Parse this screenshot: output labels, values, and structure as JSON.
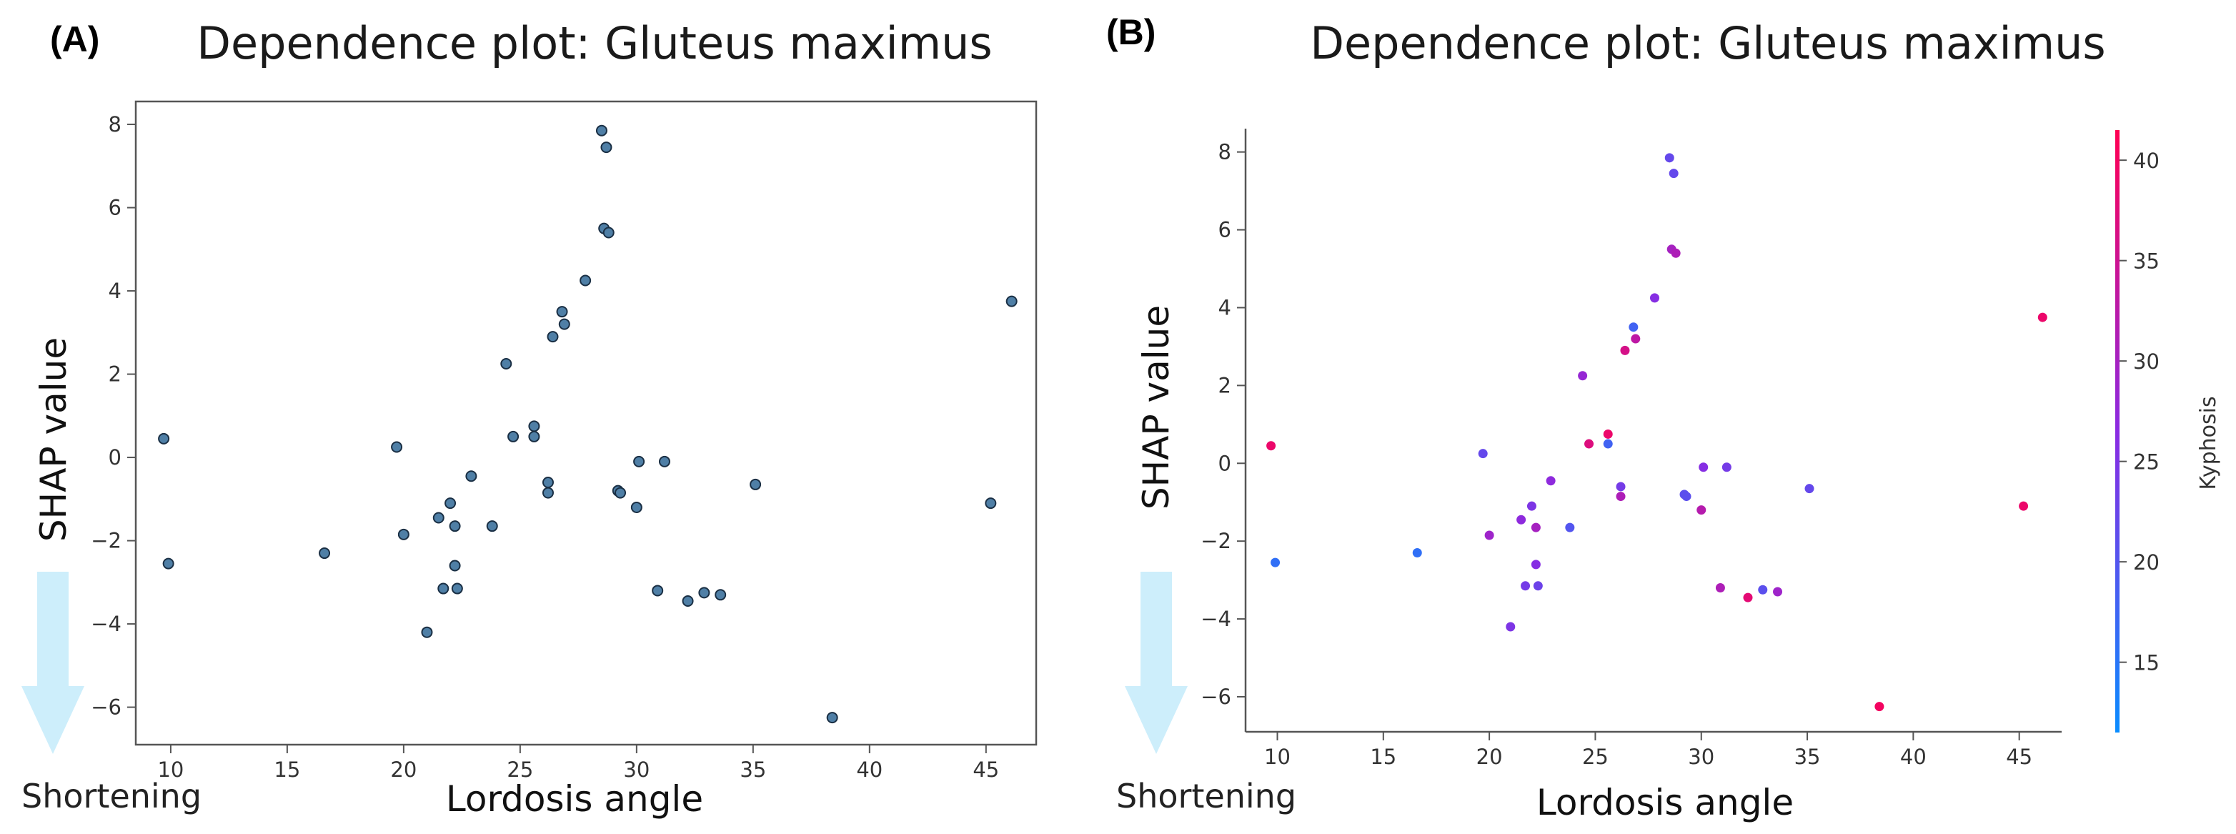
{
  "panels": {
    "a": {
      "letter": "(A)",
      "title": "Dependence plot: Gluteus maximus",
      "xlabel": "Lordosis angle",
      "ylabel": "SHAP value",
      "arrow_label": "Shortening"
    },
    "b": {
      "letter": "(B)",
      "title": "Dependence plot: Gluteus maximus",
      "xlabel": "Lordosis angle",
      "ylabel": "SHAP value",
      "arrow_label": "Shortening",
      "colorbar_label": "Kyphosis"
    }
  },
  "colors": {
    "single_point": "#4f7fa6",
    "point_edge": "#1a2f44",
    "arrow": "#cdeefb",
    "cmap_low": "#0a8cff",
    "cmap_mid": "#8a2be2",
    "cmap_high": "#ff0052"
  },
  "chart_data": [
    {
      "type": "scatter",
      "title": "Dependence plot: Gluteus maximus",
      "xlabel": "Lordosis angle",
      "ylabel": "SHAP value",
      "xlim": [
        8.5,
        47
      ],
      "ylim": [
        -6.9,
        8.55
      ],
      "xticks": [
        10,
        15,
        20,
        25,
        30,
        35,
        40,
        45
      ],
      "yticks": [
        -6,
        -4,
        -2,
        0,
        2,
        4,
        6,
        8
      ],
      "ytick_labels": [
        "−6",
        "−4",
        "−2",
        "0",
        "2",
        "4",
        "6",
        "8"
      ],
      "frame": "box",
      "x": [
        28.5,
        28.7,
        28.6,
        28.8,
        27.8,
        26.8,
        26.9,
        26.4,
        24.4,
        25.6,
        24.7,
        25.6,
        19.7,
        22.9,
        26.2,
        26.2,
        29.2,
        29.3,
        30.1,
        31.2,
        30.0,
        35.1,
        45.2,
        46.1,
        9.7,
        9.9,
        16.6,
        20.0,
        21.5,
        22.0,
        22.2,
        23.8,
        22.2,
        21.7,
        22.3,
        21.0,
        30.9,
        32.2,
        32.9,
        33.6,
        38.4
      ],
      "y": [
        7.85,
        7.45,
        5.5,
        5.4,
        4.25,
        3.5,
        3.2,
        2.9,
        2.25,
        0.75,
        0.5,
        0.5,
        0.25,
        -0.45,
        -0.6,
        -0.85,
        -0.8,
        -0.85,
        -0.1,
        -0.1,
        -1.2,
        -0.65,
        -1.1,
        3.75,
        0.45,
        -2.55,
        -2.3,
        -1.85,
        -1.45,
        -1.1,
        -1.65,
        -1.65,
        -2.6,
        -3.15,
        -3.15,
        -4.2,
        -3.2,
        -3.45,
        -3.25,
        -3.3,
        -6.25
      ]
    },
    {
      "type": "scatter",
      "title": "Dependence plot: Gluteus maximus",
      "xlabel": "Lordosis angle",
      "ylabel": "SHAP value",
      "xlim": [
        8.5,
        47
      ],
      "ylim": [
        -6.9,
        8.6
      ],
      "xticks": [
        10,
        15,
        20,
        25,
        30,
        35,
        40,
        45
      ],
      "yticks": [
        -6,
        -4,
        -2,
        0,
        2,
        4,
        6,
        8
      ],
      "ytick_labels": [
        "−6",
        "−4",
        "−2",
        "0",
        "2",
        "4",
        "6",
        "8"
      ],
      "frame": "open",
      "color_variable": "Kyphosis",
      "colorbar_range": [
        11.5,
        41.5
      ],
      "colorbar_ticks": [
        15,
        20,
        25,
        30,
        35,
        40
      ],
      "x": [
        28.5,
        28.7,
        28.6,
        28.8,
        27.8,
        26.8,
        26.9,
        26.4,
        24.4,
        25.6,
        24.7,
        25.6,
        19.7,
        22.9,
        26.2,
        26.2,
        29.2,
        29.3,
        30.1,
        31.2,
        30.0,
        35.1,
        45.2,
        46.1,
        9.7,
        9.9,
        16.6,
        20.0,
        21.5,
        22.0,
        22.2,
        23.8,
        22.2,
        21.7,
        22.3,
        21.0,
        30.9,
        32.2,
        32.9,
        33.6,
        38.4
      ],
      "y": [
        7.85,
        7.45,
        5.5,
        5.4,
        4.25,
        3.5,
        3.2,
        2.9,
        2.25,
        0.75,
        0.5,
        0.5,
        0.25,
        -0.45,
        -0.6,
        -0.85,
        -0.8,
        -0.85,
        -0.1,
        -0.1,
        -1.2,
        -0.65,
        -1.1,
        3.75,
        0.45,
        -2.55,
        -2.3,
        -1.85,
        -1.45,
        -1.1,
        -1.65,
        -1.65,
        -2.6,
        -3.15,
        -3.15,
        -4.2,
        -3.2,
        -3.45,
        -3.25,
        -3.3,
        -6.25
      ],
      "color_values": [
        22,
        22,
        30,
        31,
        26,
        18,
        33,
        36,
        28,
        39,
        37,
        18,
        22,
        27,
        24,
        31,
        21,
        21,
        26,
        24,
        32,
        22,
        39,
        39,
        39,
        16,
        16,
        29,
        27,
        25,
        30,
        20,
        26,
        24,
        23,
        25,
        31,
        38,
        21,
        29,
        40
      ]
    }
  ]
}
